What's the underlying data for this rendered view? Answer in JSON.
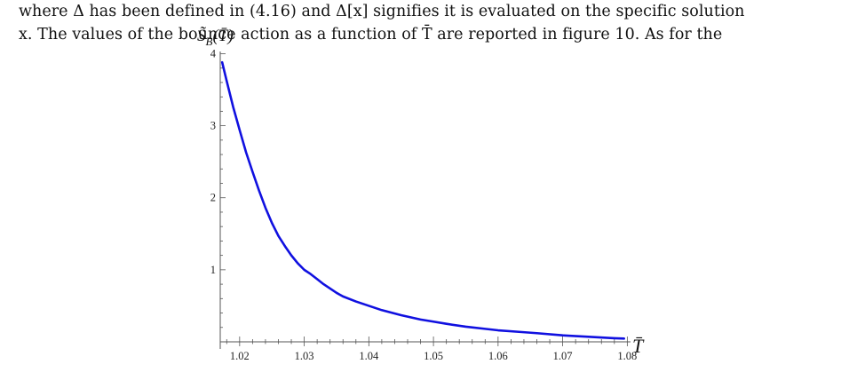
{
  "text": {
    "line1": "where Δ has been defined in (4.16) and Δ[x] signifies it is evaluated on the specific solution",
    "line2": "x. The values of the bounce action as a function of T̄ are reported in figure 10. As for the",
    "caption_partial": "S̃_B[T̄]  …  T̄"
  },
  "chart_data": {
    "type": "line",
    "ylabel": "S̃B(T̄)",
    "ylabel_main": "S̃",
    "ylabel_sub": "B",
    "ylabel_arg": "(T̄)",
    "xlabel": "T̄",
    "xlim": [
      1.017,
      1.0805
    ],
    "ylim": [
      0,
      4.03
    ],
    "x_ticks": [
      1.02,
      1.03,
      1.04,
      1.05,
      1.06,
      1.07,
      1.08
    ],
    "x_tick_labels": [
      "1.02",
      "1.03",
      "1.04",
      "1.05",
      "1.06",
      "1.07",
      "1.08"
    ],
    "y_ticks": [
      1,
      2,
      3,
      4
    ],
    "y_tick_labels": [
      "1",
      "2",
      "3",
      "4"
    ],
    "series": [
      {
        "color": "#1010e0",
        "x": [
          1.0173,
          1.018,
          1.019,
          1.02,
          1.021,
          1.022,
          1.023,
          1.024,
          1.025,
          1.026,
          1.027,
          1.028,
          1.029,
          1.03,
          1.031,
          1.032,
          1.033,
          1.034,
          1.035,
          1.036,
          1.038,
          1.04,
          1.042,
          1.045,
          1.048,
          1.05,
          1.052,
          1.055,
          1.058,
          1.06,
          1.063,
          1.066,
          1.07,
          1.074,
          1.078,
          1.0795
        ],
        "y": [
          3.88,
          3.62,
          3.26,
          2.94,
          2.63,
          2.36,
          2.1,
          1.86,
          1.65,
          1.47,
          1.33,
          1.2,
          1.09,
          1.0,
          0.94,
          0.87,
          0.8,
          0.74,
          0.68,
          0.63,
          0.56,
          0.5,
          0.44,
          0.37,
          0.31,
          0.28,
          0.25,
          0.21,
          0.18,
          0.16,
          0.14,
          0.12,
          0.09,
          0.07,
          0.05,
          0.045
        ]
      }
    ]
  }
}
